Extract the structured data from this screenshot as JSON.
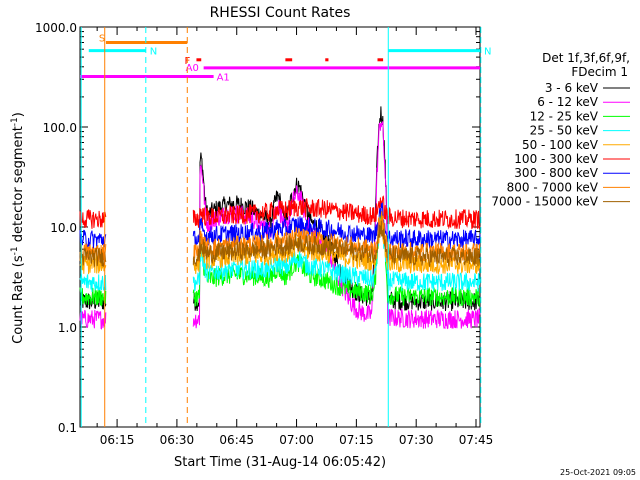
{
  "chart_data": {
    "type": "line",
    "title": "RHESSI Count Rates",
    "xlabel": "Start Time (31-Aug-14 06:05:42)",
    "ylabel_main": "Count Rate (s",
    "ylabel_sup1": "-1",
    "ylabel_mid": " detector segment",
    "ylabel_sup2": "-1",
    "ylabel_end": ")",
    "y_scale": "log",
    "ylim": [
      0.1,
      1000
    ],
    "xlim": [
      "06:05:42",
      "07:46:00"
    ],
    "x_ticks": [
      {
        "t": "06:15",
        "min": 15
      },
      {
        "t": "06:30",
        "min": 30
      },
      {
        "t": "06:45",
        "min": 45
      },
      {
        "t": "07:00",
        "min": 60
      },
      {
        "t": "07:15",
        "min": 75
      },
      {
        "t": "07:30",
        "min": 90
      },
      {
        "t": "07:45",
        "min": 105
      }
    ],
    "y_ticks": [
      {
        "label": "0.1",
        "v": 0.1
      },
      {
        "label": "1.0",
        "v": 1
      },
      {
        "label": "10.0",
        "v": 10
      },
      {
        "label": "100.0",
        "v": 100
      },
      {
        "label": "1000.0",
        "v": 1000
      }
    ],
    "grid": false,
    "legend_position": "right",
    "legend_header": [
      "Det 1f,3f,6f,9f,",
      "FDecim 1"
    ],
    "series": [
      {
        "name": "3 - 6 keV",
        "color": "#000000",
        "base": 1.8,
        "flare": 8
      },
      {
        "name": "6 - 12 keV",
        "color": "#ff00ff",
        "base": 1.2,
        "flare": 10
      },
      {
        "name": "12 - 25 keV",
        "color": "#00ff00",
        "base": 2.0,
        "flare": 0.6
      },
      {
        "name": "25 - 50 keV",
        "color": "#00ffff",
        "base": 2.8,
        "flare": 0.3
      },
      {
        "name": "50 - 100 keV",
        "color": "#ffaa00",
        "base": 4.2,
        "flare": 0.15
      },
      {
        "name": "100 - 300 keV",
        "color": "#ff0000",
        "base": 12,
        "flare": 0.05
      },
      {
        "name": "300 - 800 keV",
        "color": "#0000ff",
        "base": 7.5,
        "flare": 0.1
      },
      {
        "name": "800 - 7000 keV",
        "color": "#ff8000",
        "base": 5.6,
        "flare": 0.12
      },
      {
        "name": "7000 - 15000 keV",
        "color": "#a06000",
        "base": 5.0,
        "flare": 0.1
      }
    ],
    "gaps": [
      [
        6.6,
        28.4
      ]
    ],
    "flags": [
      {
        "label": "S",
        "color": "#ff8000",
        "start": 6.5,
        "end": 26.9,
        "level": 700
      },
      {
        "label": "N",
        "color": "#00ffff",
        "start": 2.2,
        "end": 16.5,
        "level": 580
      },
      {
        "label": "N",
        "color": "#00ffff",
        "start": 77.3,
        "end": 100.5,
        "level": 580
      },
      {
        "label": "A0",
        "color": "#ff00ff",
        "start": 31.0,
        "end": 100.5,
        "level": 390
      },
      {
        "label": "A1",
        "color": "#ff00ff",
        "start": 0,
        "end": 33.5,
        "level": 320
      },
      {
        "label": "F",
        "color": "#ff0000",
        "start": 29.2,
        "end": 30.4,
        "level": 470
      },
      {
        "label": "",
        "color": "#ff0000",
        "start": 51.5,
        "end": 53.2,
        "level": 470
      },
      {
        "label": "",
        "color": "#ff0000",
        "start": 61.5,
        "end": 62.3,
        "level": 470
      },
      {
        "label": "",
        "color": "#ff0000",
        "start": 74.6,
        "end": 76.0,
        "level": 470
      }
    ],
    "vlines": [
      {
        "color": "#00ffff",
        "min": 0.3,
        "dash": false
      },
      {
        "color": "#ff8000",
        "min": 6.2,
        "dash": false
      },
      {
        "color": "#00ffff",
        "min": 16.5,
        "dash": true
      },
      {
        "color": "#ff8000",
        "min": 26.9,
        "dash": true
      },
      {
        "color": "#00ffff",
        "min": 77.3,
        "dash": false
      },
      {
        "color": "#00ffff",
        "min": 100.5,
        "dash": true
      }
    ]
  },
  "footer": {
    "date": "25-Oct-2021 09:05"
  }
}
